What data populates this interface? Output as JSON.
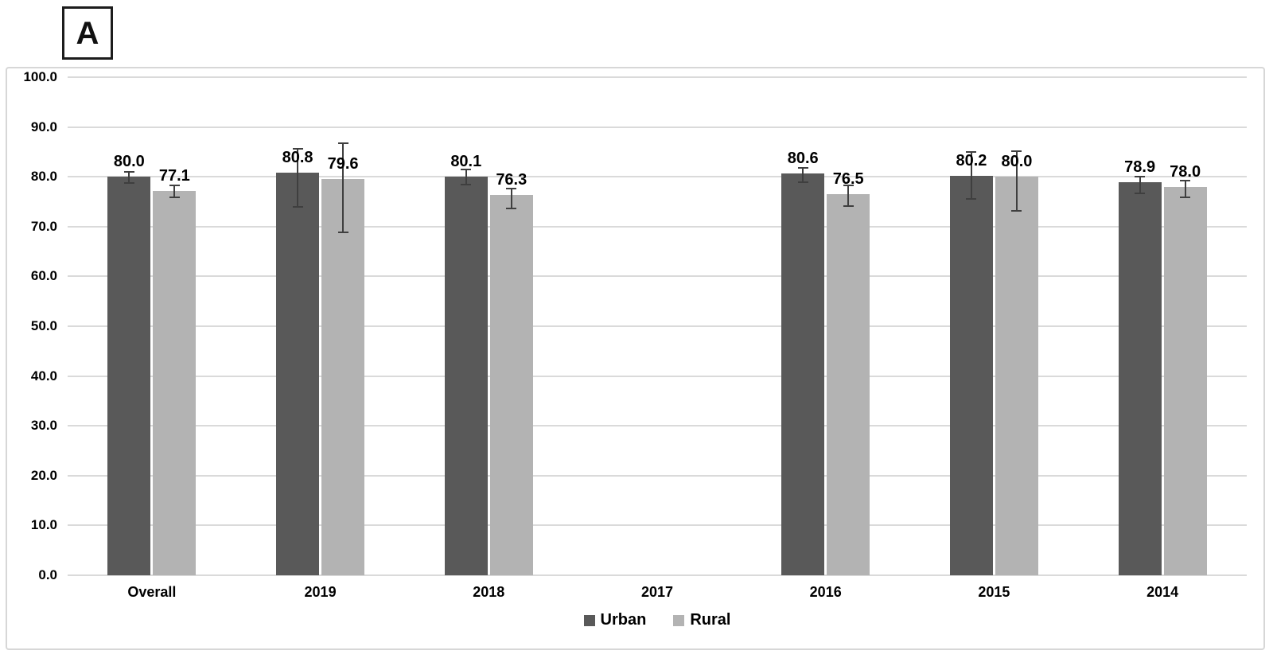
{
  "panel": {
    "label": "A"
  },
  "chart_data": {
    "type": "bar",
    "title": "",
    "panel_label": "A",
    "categories": [
      "Overall",
      "2019",
      "2018",
      "2017",
      "2016",
      "2015",
      "2014"
    ],
    "series": [
      {
        "name": "Urban",
        "color": "#595959",
        "values": [
          80.0,
          80.8,
          80.1,
          null,
          80.6,
          80.2,
          78.9
        ],
        "value_labels": [
          "80.0",
          "80.8",
          "80.1",
          "",
          "80.6",
          "80.2",
          "78.9"
        ],
        "error_low": [
          78.8,
          74.0,
          78.4,
          null,
          78.9,
          75.6,
          76.7
        ],
        "error_high": [
          81.0,
          85.7,
          81.4,
          null,
          81.8,
          85.0,
          80.1
        ]
      },
      {
        "name": "Rural",
        "color": "#b3b3b3",
        "values": [
          77.1,
          79.6,
          76.3,
          null,
          76.5,
          80.0,
          78.0
        ],
        "value_labels": [
          "77.1",
          "79.6",
          "76.3",
          "",
          "76.5",
          "80.0",
          "78.0"
        ],
        "error_low": [
          75.9,
          68.9,
          73.7,
          null,
          74.1,
          73.1,
          75.9
        ],
        "error_high": [
          78.3,
          86.8,
          77.7,
          null,
          78.2,
          85.2,
          79.2
        ]
      }
    ],
    "ylim": [
      0,
      100
    ],
    "ytick_labels": [
      "0.0",
      "10.0",
      "20.0",
      "30.0",
      "40.0",
      "50.0",
      "60.0",
      "70.0",
      "80.0",
      "90.0",
      "100.0"
    ],
    "grid": true,
    "error_bars": true,
    "legend": {
      "position": "bottom"
    },
    "colors": {
      "gridline": "#dadada",
      "error_bar": "#3f3f3f",
      "text": "#000000",
      "frame_border": "#d7d7d7"
    }
  }
}
